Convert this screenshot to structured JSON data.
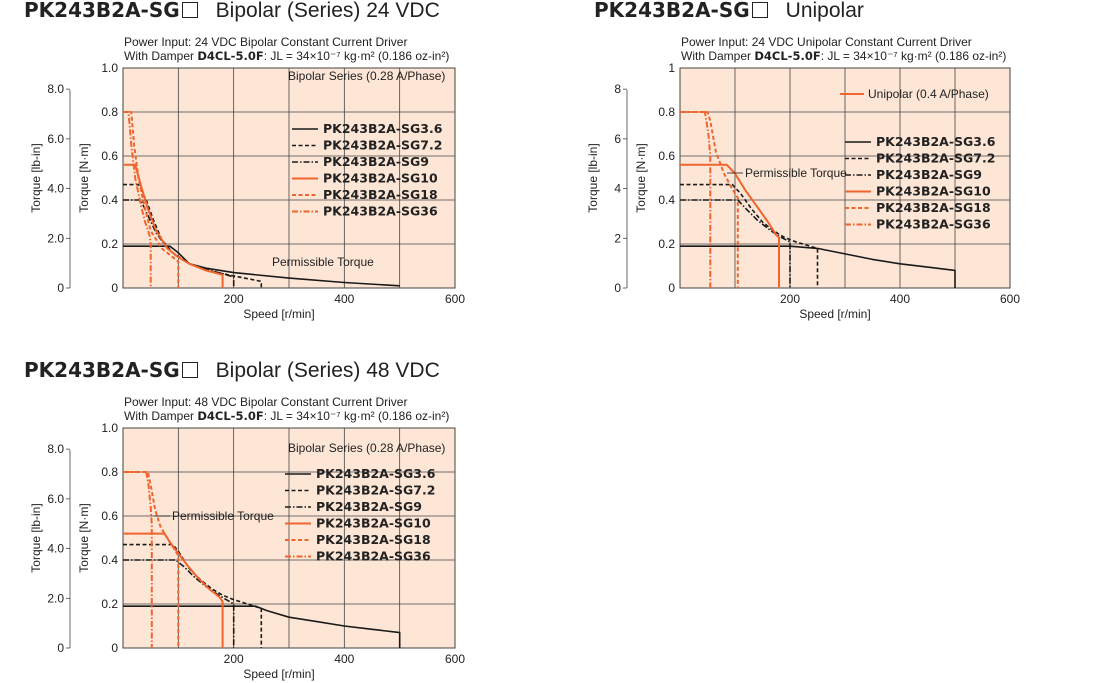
{
  "colors": {
    "plot_bg": "#fde6d6",
    "black": "#1a1a1a",
    "orange": "#f0642d",
    "grid": "#444444"
  },
  "chart_data": [
    {
      "type": "line",
      "title_model": "PK243B2A-SG",
      "title_sub": "Bipolar (Series) 24 VDC",
      "info_line1": "Power Input: 24 VDC   Bipolar Constant Current Driver",
      "info_line2_prefix": "With Damper ",
      "info_line2_damper": "D4CL-5.0F",
      "info_line2_suffix": ": JL = 34×10⁻⁷ kg·m² (0.186 oz-in²)",
      "xlabel": "Speed [r/min]",
      "ylabel_nm": "Torque [N·m]",
      "ylabel_lbin": "Torque [lb-in]",
      "xlim": [
        0,
        600
      ],
      "ylim": [
        0,
        1.0
      ],
      "x_ticks": [
        "200",
        "400",
        "600"
      ],
      "y_ticks_nm": [
        "0",
        "0.2",
        "0.4",
        "0.6",
        "0.8",
        "1.0"
      ],
      "y_ticks_lbin": [
        "0",
        "2.0",
        "4.0",
        "6.0",
        "8.0"
      ],
      "legend_title": "Bipolar Series (0.28 A/Phase)",
      "annotation": "Permissible Torque",
      "series": [
        {
          "name": "PK243B2A-SG3.6",
          "color": "black",
          "dash": "solid",
          "points": [
            [
              0,
              0.19
            ],
            [
              85,
              0.19
            ],
            [
              100,
              0.16
            ],
            [
              120,
              0.11
            ],
            [
              150,
              0.09
            ],
            [
              200,
              0.07
            ],
            [
              300,
              0.045
            ],
            [
              400,
              0.025
            ],
            [
              500,
              0.01
            ]
          ]
        },
        {
          "name": "PK243B2A-SG7.2",
          "color": "black",
          "dash": "dash",
          "points": [
            [
              0,
              0.47
            ],
            [
              28,
              0.47
            ],
            [
              42,
              0.4
            ],
            [
              55,
              0.31
            ],
            [
              70,
              0.22
            ],
            [
              90,
              0.16
            ],
            [
              120,
              0.11
            ],
            [
              150,
              0.08
            ],
            [
              200,
              0.055
            ],
            [
              230,
              0.04
            ],
            [
              250,
              0.03
            ],
            [
              250,
              0
            ]
          ]
        },
        {
          "name": "PK243B2A-SG9",
          "color": "black",
          "dash": "dashdot",
          "points": [
            [
              0,
              0.4
            ],
            [
              32,
              0.4
            ],
            [
              45,
              0.33
            ],
            [
              60,
              0.25
            ],
            [
              80,
              0.18
            ],
            [
              100,
              0.14
            ],
            [
              120,
              0.11
            ],
            [
              150,
              0.085
            ],
            [
              180,
              0.065
            ],
            [
              200,
              0.05
            ],
            [
              200,
              0
            ]
          ]
        },
        {
          "name": "PK243B2A-SG10",
          "color": "orange",
          "dash": "solid",
          "points": [
            [
              0,
              0.56
            ],
            [
              22,
              0.56
            ],
            [
              33,
              0.46
            ],
            [
              45,
              0.36
            ],
            [
              60,
              0.26
            ],
            [
              80,
              0.18
            ],
            [
              100,
              0.14
            ],
            [
              120,
              0.11
            ],
            [
              150,
              0.08
            ],
            [
              180,
              0.06
            ],
            [
              180,
              0
            ]
          ]
        },
        {
          "name": "PK243B2A-SG18",
          "color": "orange",
          "dash": "dash",
          "points": [
            [
              0,
              0.8
            ],
            [
              15,
              0.8
            ],
            [
              20,
              0.65
            ],
            [
              28,
              0.5
            ],
            [
              38,
              0.38
            ],
            [
              50,
              0.26
            ],
            [
              70,
              0.18
            ],
            [
              90,
              0.14
            ],
            [
              100,
              0.12
            ],
            [
              100,
              0
            ]
          ]
        },
        {
          "name": "PK243B2A-SG36",
          "color": "orange",
          "dash": "dashdot",
          "points": [
            [
              0,
              0.8
            ],
            [
              10,
              0.8
            ],
            [
              15,
              0.65
            ],
            [
              22,
              0.5
            ],
            [
              32,
              0.38
            ],
            [
              40,
              0.3
            ],
            [
              48,
              0.24
            ],
            [
              50,
              0.2
            ],
            [
              50,
              0
            ]
          ]
        }
      ]
    },
    {
      "type": "line",
      "title_model": "PK243B2A-SG",
      "title_sub": "Unipolar",
      "info_line1": "Power Input: 24 VDC   Unipolar Constant Current Driver",
      "info_line2_prefix": "With Damper ",
      "info_line2_damper": "D4CL-5.0F",
      "info_line2_suffix": ": JL = 34×10⁻⁷ kg·m² (0.186 oz-in²)",
      "xlabel": "Speed [r/min]",
      "ylabel_nm": "Torque [N·m]",
      "ylabel_lbin": "Torque [lb-in]",
      "xlim": [
        0,
        600
      ],
      "ylim": [
        0,
        1
      ],
      "x_ticks": [
        "200",
        "400",
        "600"
      ],
      "y_ticks_nm": [
        "0",
        "0.2",
        "0.4",
        "0.6",
        "0.8",
        "1"
      ],
      "y_ticks_lbin": [
        "0",
        "2",
        "4",
        "6",
        "8"
      ],
      "legend_title": "Unipolar (0.4 A/Phase)",
      "annotation": "Permissible Torque",
      "series": [
        {
          "name": "PK243B2A-SG3.6",
          "color": "black",
          "dash": "solid",
          "points": [
            [
              0,
              0.19
            ],
            [
              200,
              0.19
            ],
            [
              250,
              0.18
            ],
            [
              300,
              0.155
            ],
            [
              350,
              0.13
            ],
            [
              400,
              0.11
            ],
            [
              450,
              0.095
            ],
            [
              500,
              0.08
            ],
            [
              500,
              0
            ]
          ]
        },
        {
          "name": "PK243B2A-SG7.2",
          "color": "black",
          "dash": "dash",
          "points": [
            [
              0,
              0.47
            ],
            [
              95,
              0.47
            ],
            [
              110,
              0.43
            ],
            [
              130,
              0.36
            ],
            [
              150,
              0.3
            ],
            [
              170,
              0.26
            ],
            [
              190,
              0.23
            ],
            [
              210,
              0.21
            ],
            [
              230,
              0.195
            ],
            [
              250,
              0.18
            ],
            [
              250,
              0
            ]
          ]
        },
        {
          "name": "PK243B2A-SG9",
          "color": "black",
          "dash": "dashdot",
          "points": [
            [
              0,
              0.4
            ],
            [
              105,
              0.4
            ],
            [
              120,
              0.36
            ],
            [
              140,
              0.31
            ],
            [
              160,
              0.27
            ],
            [
              180,
              0.235
            ],
            [
              200,
              0.21
            ],
            [
              200,
              0
            ]
          ]
        },
        {
          "name": "PK243B2A-SG10",
          "color": "orange",
          "dash": "solid",
          "points": [
            [
              0,
              0.56
            ],
            [
              85,
              0.56
            ],
            [
              100,
              0.52
            ],
            [
              120,
              0.44
            ],
            [
              140,
              0.37
            ],
            [
              160,
              0.3
            ],
            [
              175,
              0.24
            ],
            [
              180,
              0.23
            ],
            [
              180,
              0
            ]
          ]
        },
        {
          "name": "PK243B2A-SG18",
          "color": "orange",
          "dash": "dash",
          "points": [
            [
              0,
              0.8
            ],
            [
              50,
              0.8
            ],
            [
              55,
              0.76
            ],
            [
              65,
              0.62
            ],
            [
              80,
              0.52
            ],
            [
              95,
              0.45
            ],
            [
              105,
              0.41
            ],
            [
              105,
              0
            ]
          ]
        },
        {
          "name": "PK243B2A-SG36",
          "color": "orange",
          "dash": "dashdot",
          "points": [
            [
              0,
              0.8
            ],
            [
              45,
              0.8
            ],
            [
              48,
              0.76
            ],
            [
              52,
              0.69
            ],
            [
              55,
              0.6
            ],
            [
              55,
              0
            ]
          ]
        }
      ]
    },
    {
      "type": "line",
      "title_model": "PK243B2A-SG",
      "title_sub": "Bipolar (Series) 48 VDC",
      "info_line1": "Power Input: 48 VDC   Bipolar Constant Current Driver",
      "info_line2_prefix": "With Damper ",
      "info_line2_damper": "D4CL-5.0F",
      "info_line2_suffix": ": JL = 34×10⁻⁷ kg·m² (0.186 oz-in²)",
      "xlabel": "Speed [r/min]",
      "ylabel_nm": "Torque [N·m]",
      "ylabel_lbin": "Torque [lb-in]",
      "xlim": [
        0,
        600
      ],
      "ylim": [
        0,
        1.0
      ],
      "x_ticks": [
        "200",
        "400",
        "600"
      ],
      "y_ticks_nm": [
        "0",
        "0.2",
        "0.4",
        "0.6",
        "0.8",
        "1.0"
      ],
      "y_ticks_lbin": [
        "0",
        "2.0",
        "4.0",
        "6.0",
        "8.0"
      ],
      "legend_title": "Bipolar Series (0.28 A/Phase)",
      "annotation": "Permissible Torque",
      "series": [
        {
          "name": "PK243B2A-SG3.6",
          "color": "black",
          "dash": "solid",
          "points": [
            [
              0,
              0.19
            ],
            [
              240,
              0.19
            ],
            [
              260,
              0.17
            ],
            [
              300,
              0.14
            ],
            [
              350,
              0.12
            ],
            [
              400,
              0.1
            ],
            [
              450,
              0.085
            ],
            [
              500,
              0.07
            ],
            [
              500,
              0
            ]
          ]
        },
        {
          "name": "PK243B2A-SG7.2",
          "color": "black",
          "dash": "dash",
          "points": [
            [
              0,
              0.47
            ],
            [
              90,
              0.47
            ],
            [
              100,
              0.44
            ],
            [
              120,
              0.36
            ],
            [
              140,
              0.31
            ],
            [
              160,
              0.27
            ],
            [
              180,
              0.24
            ],
            [
              200,
              0.22
            ],
            [
              225,
              0.2
            ],
            [
              250,
              0.18
            ],
            [
              250,
              0
            ]
          ]
        },
        {
          "name": "PK243B2A-SG9",
          "color": "black",
          "dash": "dashdot",
          "points": [
            [
              0,
              0.4
            ],
            [
              95,
              0.4
            ],
            [
              110,
              0.37
            ],
            [
              130,
              0.32
            ],
            [
              150,
              0.28
            ],
            [
              170,
              0.245
            ],
            [
              190,
              0.215
            ],
            [
              200,
              0.2
            ],
            [
              200,
              0
            ]
          ]
        },
        {
          "name": "PK243B2A-SG10",
          "color": "orange",
          "dash": "solid",
          "points": [
            [
              0,
              0.52
            ],
            [
              75,
              0.52
            ],
            [
              85,
              0.48
            ],
            [
              100,
              0.43
            ],
            [
              115,
              0.38
            ],
            [
              135,
              0.32
            ],
            [
              155,
              0.27
            ],
            [
              175,
              0.23
            ],
            [
              180,
              0.21
            ],
            [
              180,
              0
            ]
          ]
        },
        {
          "name": "PK243B2A-SG18",
          "color": "orange",
          "dash": "dash",
          "points": [
            [
              0,
              0.8
            ],
            [
              45,
              0.8
            ],
            [
              50,
              0.74
            ],
            [
              58,
              0.63
            ],
            [
              68,
              0.55
            ],
            [
              80,
              0.5
            ],
            [
              95,
              0.44
            ],
            [
              100,
              0.42
            ],
            [
              100,
              0
            ]
          ]
        },
        {
          "name": "PK243B2A-SG36",
          "color": "orange",
          "dash": "dashdot",
          "points": [
            [
              0,
              0.8
            ],
            [
              42,
              0.8
            ],
            [
              46,
              0.74
            ],
            [
              50,
              0.64
            ],
            [
              52,
              0.56
            ],
            [
              52,
              0
            ]
          ]
        }
      ]
    }
  ]
}
